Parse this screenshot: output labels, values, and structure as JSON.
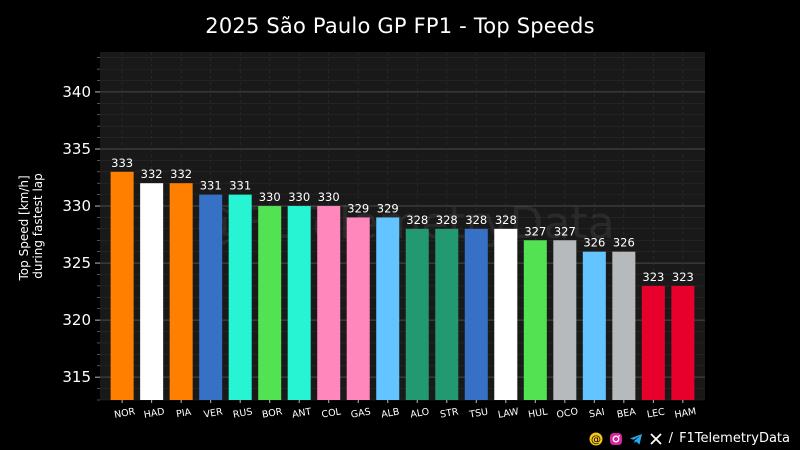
{
  "chart_data": {
    "type": "bar",
    "title": "2025 São Paulo GP FP1 - Top Speeds",
    "ylabel_lines": [
      "Top Speed [km/h]",
      "during fastest lap"
    ],
    "xlabel": "",
    "ylim": [
      313,
      343.5
    ],
    "yticks": [
      315,
      320,
      325,
      330,
      335,
      340
    ],
    "watermark": "@F1TelemetryData",
    "categories": [
      "NOR",
      "HAD",
      "PIA",
      "VER",
      "RUS",
      "BOR",
      "ANT",
      "COL",
      "GAS",
      "ALB",
      "ALO",
      "STR",
      "TSU",
      "LAW",
      "HUL",
      "OCO",
      "SAI",
      "BEA",
      "LEC",
      "HAM"
    ],
    "values": [
      333,
      332,
      332,
      331,
      331,
      330,
      330,
      330,
      329,
      329,
      328,
      328,
      328,
      328,
      327,
      327,
      326,
      326,
      323,
      323
    ],
    "colors": [
      "#FF8000",
      "#FFFFFF",
      "#FF8000",
      "#3671C6",
      "#27F4D2",
      "#52E252",
      "#27F4D2",
      "#FF87BC",
      "#FF87BC",
      "#64C4FF",
      "#229971",
      "#229971",
      "#3671C6",
      "#FFFFFF",
      "#52E252",
      "#B6BABD",
      "#64C4FF",
      "#B6BABD",
      "#E8002D",
      "#E8002D"
    ],
    "grid": true,
    "legend": "none"
  },
  "footer": {
    "icons": [
      "threads-icon",
      "instagram-icon",
      "telegram-icon",
      "x-icon"
    ],
    "separator": "/",
    "handle": "F1TelemetryData"
  }
}
